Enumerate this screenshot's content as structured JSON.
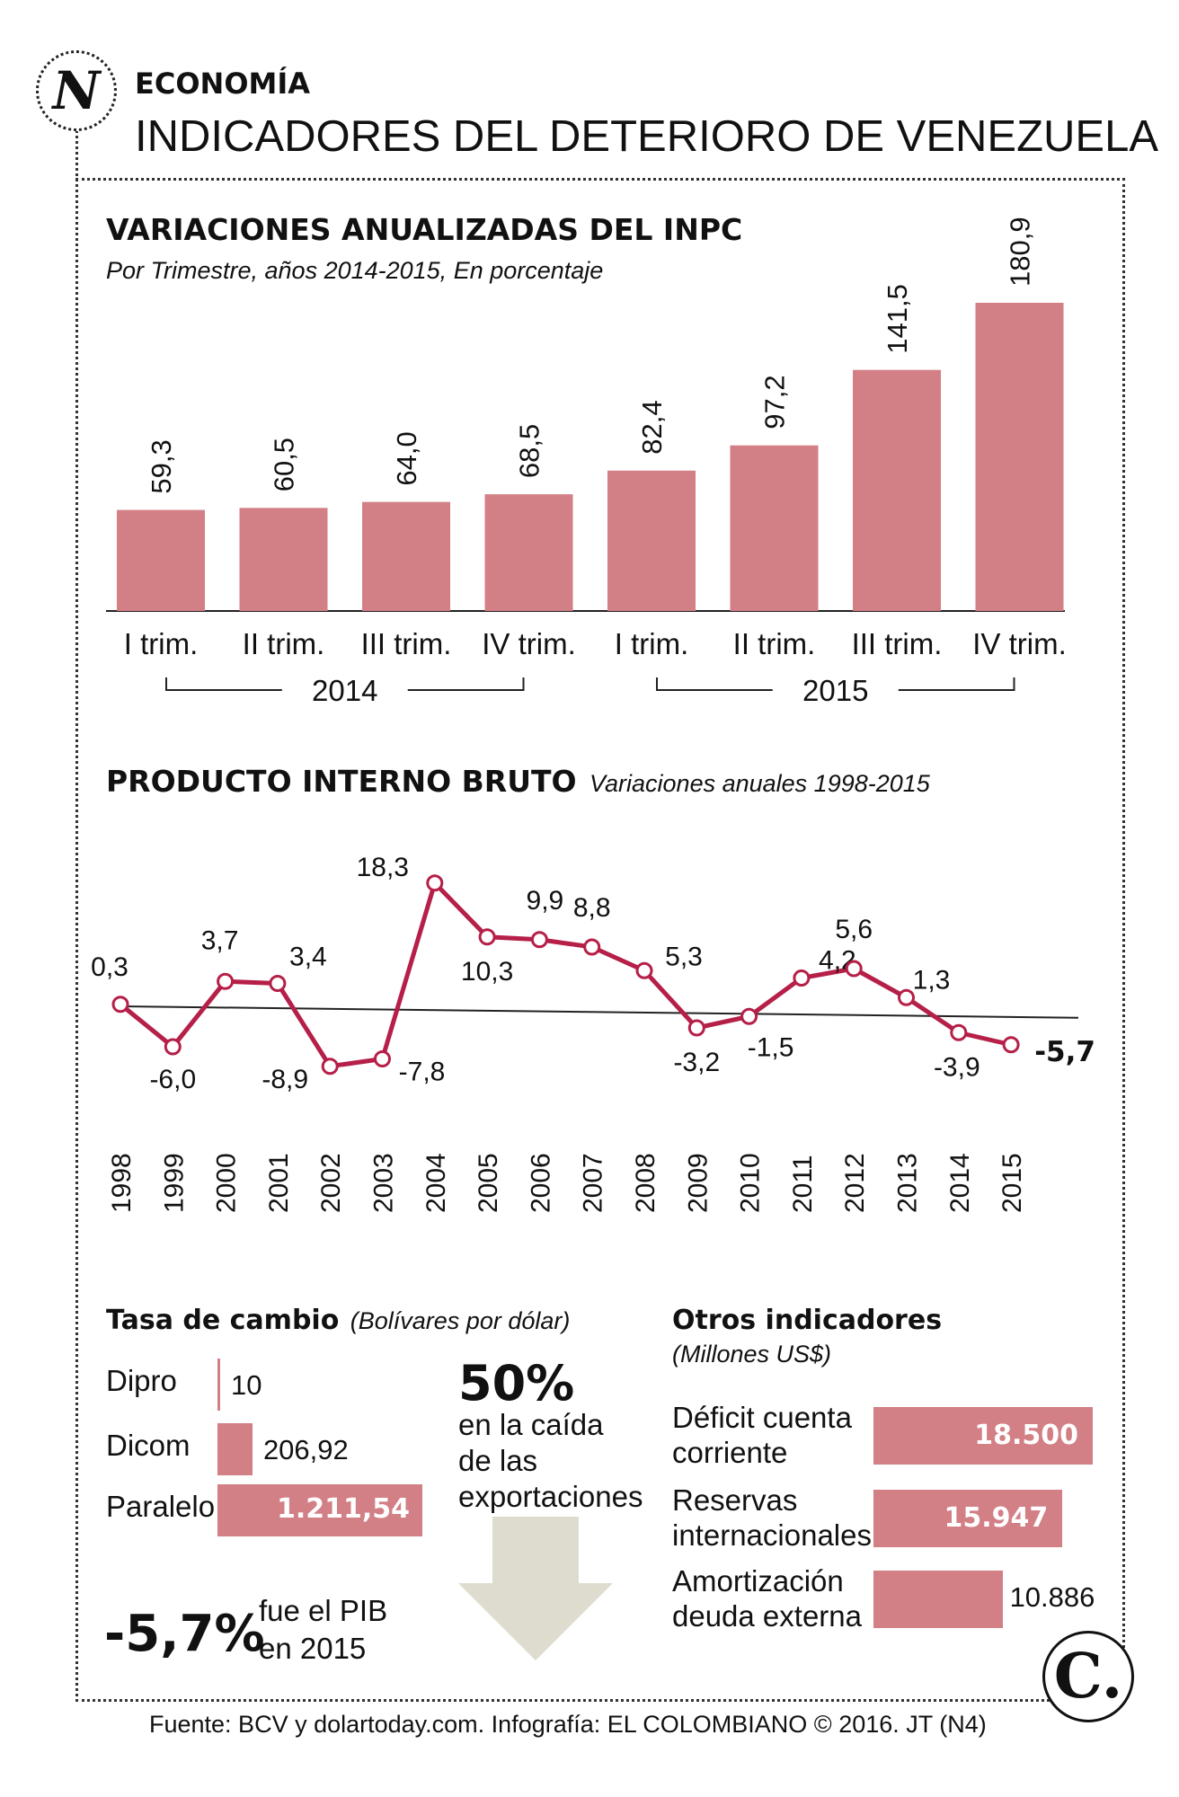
{
  "header": {
    "section": "ECONOMÍA",
    "title": "INDICADORES DEL DETERIORO DE VENEZUELA",
    "logo_letter": "N"
  },
  "chart_data": [
    {
      "type": "bar",
      "title": "VARIACIONES ANUALIZADAS DEL INPC",
      "subtitle": "Por Trimestre, años 2014-2015, En porcentaje",
      "categories": [
        "I trim.",
        "II trim.",
        "III trim.",
        "IV trim.",
        "I trim.",
        "II trim.",
        "III trim.",
        "IV trim."
      ],
      "value_labels": [
        "59,3",
        "60,5",
        "64,0",
        "68,5",
        "82,4",
        "97,2",
        "141,5",
        "180,9"
      ],
      "values": [
        59.3,
        60.5,
        64.0,
        68.5,
        82.4,
        97.2,
        141.5,
        180.9
      ],
      "groups": [
        "2014",
        "2015"
      ],
      "ylim": [
        0,
        180.9
      ]
    },
    {
      "type": "line",
      "title": "PRODUCTO INTERNO BRUTO",
      "subtitle": "Variaciones anuales 1998-2015",
      "x": [
        "1998",
        "1999",
        "2000",
        "2001",
        "2002",
        "2003",
        "2004",
        "2005",
        "2006",
        "2007",
        "2008",
        "2009",
        "2010",
        "2011",
        "2012",
        "2013",
        "2014",
        "2015"
      ],
      "values": [
        0.3,
        -6.0,
        3.7,
        3.4,
        -8.9,
        -7.8,
        18.3,
        10.3,
        9.9,
        8.8,
        5.3,
        -3.2,
        -1.5,
        4.2,
        5.6,
        1.3,
        -3.9,
        -5.7
      ],
      "value_labels": [
        "0,3",
        "-6,0",
        "3,7",
        "3,4",
        "-8,9",
        "-7,8",
        "18,3",
        "10,3",
        "9,9",
        "8,8",
        "5,3",
        "-3,2",
        "-1,5",
        "4,2",
        "5,6",
        "1,3",
        "-3,9",
        "-5,7"
      ],
      "trend": [
        0.0,
        -1.7
      ],
      "ylim": [
        -10,
        20
      ]
    },
    {
      "type": "bar",
      "title": "Tasa de cambio",
      "subtitle": "(Bolívares por dólar)",
      "categories": [
        "Dipro",
        "Dicom",
        "Paralelo"
      ],
      "values": [
        10,
        206.92,
        1211.54
      ],
      "value_labels": [
        "10",
        "206,92",
        "1.211,54"
      ]
    },
    {
      "type": "bar",
      "title": "Otros indicadores",
      "subtitle": "(Millones US$)",
      "categories": [
        "Déficit cuenta corriente",
        "Reservas internacionales",
        "Amortización deuda externa"
      ],
      "category_lines": [
        [
          "Déficit cuenta",
          "corriente"
        ],
        [
          "Reservas",
          "internacionales"
        ],
        [
          "Amortización",
          "deuda externa"
        ]
      ],
      "values": [
        18500,
        15947,
        10886
      ],
      "value_labels": [
        "18.500",
        "15.947",
        "10.886"
      ]
    }
  ],
  "callouts": {
    "exports_value": "50%",
    "exports_line1": "en la caída",
    "exports_line2": "de las",
    "exports_line3": "exportaciones",
    "pib_value": "-5,7%",
    "pib_line1": "fue el PIB",
    "pib_line2": "en 2015"
  },
  "footer": {
    "credit": "Fuente: BCV y dolartoday.com. Infografía: EL COLOMBIANO © 2016. JT (N4)",
    "badge": "C."
  },
  "colors": {
    "bar": "#d27f85",
    "line": "#b51f48",
    "arrow": "#dddccf"
  }
}
